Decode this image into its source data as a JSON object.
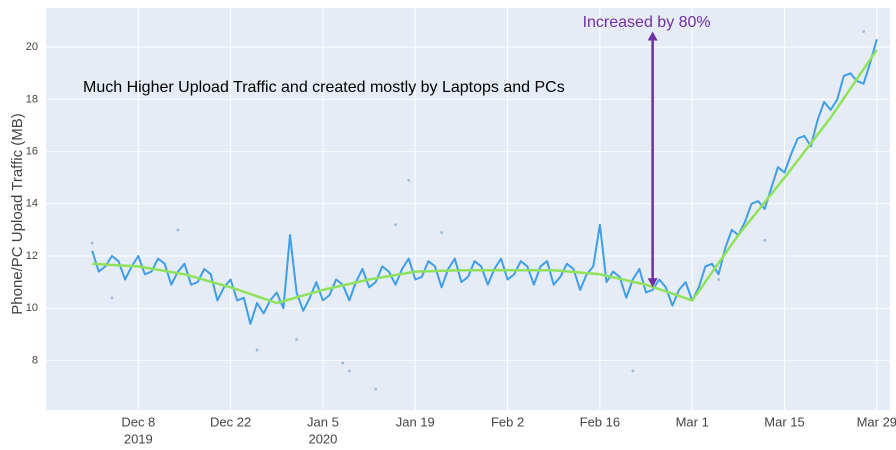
{
  "chart_data": {
    "type": "line",
    "ylabel": "Phone/PC Upload Traffic (MB)",
    "annotations": [
      {
        "text": "Increased by 80%",
        "color": "#7030a0",
        "arrow": {
          "x": "2020-02-24",
          "y_start": 10.8,
          "y_end": 20.6
        }
      },
      {
        "text": "Much Higher Upload Traffic and created mostly by Laptops and PCs",
        "color": "#000000"
      }
    ],
    "xlim": [
      "2019-11-24",
      "2020-03-31"
    ],
    "xticks": [
      {
        "value": "2019-12-08",
        "label": "Dec 8",
        "year": "2019"
      },
      {
        "value": "2019-12-22",
        "label": "Dec 22"
      },
      {
        "value": "2020-01-05",
        "label": "Jan 5",
        "year": "2020"
      },
      {
        "value": "2020-01-19",
        "label": "Jan 19"
      },
      {
        "value": "2020-02-02",
        "label": "Feb 2"
      },
      {
        "value": "2020-02-16",
        "label": "Feb 16"
      },
      {
        "value": "2020-03-01",
        "label": "Mar 1"
      },
      {
        "value": "2020-03-15",
        "label": "Mar 15"
      },
      {
        "value": "2020-03-29",
        "label": "Mar 29"
      }
    ],
    "ylim": [
      6.1,
      21.5
    ],
    "yticks": [
      8,
      10,
      12,
      14,
      16,
      18,
      20
    ],
    "grid": true,
    "series": [
      {
        "kind": "line",
        "color": "#3f9ee8",
        "x": [
          "2019-12-01",
          "2019-12-02",
          "2019-12-03",
          "2019-12-04",
          "2019-12-05",
          "2019-12-06",
          "2019-12-07",
          "2019-12-08",
          "2019-12-09",
          "2019-12-10",
          "2019-12-11",
          "2019-12-12",
          "2019-12-13",
          "2019-12-14",
          "2019-12-15",
          "2019-12-16",
          "2019-12-17",
          "2019-12-18",
          "2019-12-19",
          "2019-12-20",
          "2019-12-21",
          "2019-12-22",
          "2019-12-23",
          "2019-12-24",
          "2019-12-25",
          "2019-12-26",
          "2019-12-27",
          "2019-12-28",
          "2019-12-29",
          "2019-12-30",
          "2019-12-31",
          "2020-01-01",
          "2020-01-02",
          "2020-01-03",
          "2020-01-04",
          "2020-01-05",
          "2020-01-06",
          "2020-01-07",
          "2020-01-08",
          "2020-01-09",
          "2020-01-10",
          "2020-01-11",
          "2020-01-12",
          "2020-01-13",
          "2020-01-14",
          "2020-01-15",
          "2020-01-16",
          "2020-01-17",
          "2020-01-18",
          "2020-01-19",
          "2020-01-20",
          "2020-01-21",
          "2020-01-22",
          "2020-01-23",
          "2020-01-24",
          "2020-01-25",
          "2020-01-26",
          "2020-01-27",
          "2020-01-28",
          "2020-01-29",
          "2020-01-30",
          "2020-01-31",
          "2020-02-01",
          "2020-02-02",
          "2020-02-03",
          "2020-02-04",
          "2020-02-05",
          "2020-02-06",
          "2020-02-07",
          "2020-02-08",
          "2020-02-09",
          "2020-02-10",
          "2020-02-11",
          "2020-02-12",
          "2020-02-13",
          "2020-02-14",
          "2020-02-15",
          "2020-02-16",
          "2020-02-17",
          "2020-02-18",
          "2020-02-19",
          "2020-02-20",
          "2020-02-21",
          "2020-02-22",
          "2020-02-23",
          "2020-02-24",
          "2020-02-25",
          "2020-02-26",
          "2020-02-27",
          "2020-02-28",
          "2020-02-29",
          "2020-03-01",
          "2020-03-02",
          "2020-03-03",
          "2020-03-04",
          "2020-03-05",
          "2020-03-06",
          "2020-03-07",
          "2020-03-08",
          "2020-03-09",
          "2020-03-10",
          "2020-03-11",
          "2020-03-12",
          "2020-03-13",
          "2020-03-14",
          "2020-03-15",
          "2020-03-16",
          "2020-03-17",
          "2020-03-18",
          "2020-03-19",
          "2020-03-20",
          "2020-03-21",
          "2020-03-22",
          "2020-03-23",
          "2020-03-24",
          "2020-03-25",
          "2020-03-26",
          "2020-03-27",
          "2020-03-28",
          "2020-03-29"
        ],
        "values": [
          12.2,
          11.4,
          11.6,
          12.0,
          11.8,
          11.1,
          11.6,
          12.0,
          11.3,
          11.4,
          11.9,
          11.7,
          10.9,
          11.4,
          11.7,
          10.9,
          11.0,
          11.5,
          11.3,
          10.3,
          10.8,
          11.1,
          10.3,
          10.4,
          9.4,
          10.2,
          9.8,
          10.3,
          10.6,
          10.0,
          12.8,
          10.6,
          9.9,
          10.4,
          11.0,
          10.3,
          10.5,
          11.1,
          10.9,
          10.3,
          11.0,
          11.5,
          10.8,
          11.0,
          11.6,
          11.4,
          10.9,
          11.5,
          11.9,
          11.1,
          11.2,
          11.8,
          11.6,
          10.8,
          11.5,
          11.9,
          11.0,
          11.2,
          11.8,
          11.6,
          10.9,
          11.5,
          11.9,
          11.1,
          11.3,
          11.8,
          11.6,
          10.9,
          11.6,
          11.8,
          10.9,
          11.2,
          11.7,
          11.5,
          10.7,
          11.3,
          11.6,
          13.2,
          11.0,
          11.4,
          11.2,
          10.4,
          11.1,
          11.5,
          10.6,
          10.7,
          11.1,
          10.8,
          10.1,
          10.7,
          11.0,
          10.3,
          10.8,
          11.6,
          11.7,
          11.3,
          12.3,
          13.0,
          12.8,
          13.3,
          14.0,
          14.1,
          13.8,
          14.6,
          15.4,
          15.2,
          15.9,
          16.5,
          16.6,
          16.2,
          17.2,
          17.9,
          17.6,
          18.0,
          18.9,
          19.0,
          18.7,
          18.6,
          19.4,
          20.3
        ]
      },
      {
        "kind": "line",
        "color": "#8fe25a",
        "x": [
          "2019-12-01",
          "2019-12-08",
          "2019-12-15",
          "2019-12-22",
          "2019-12-29",
          "2020-01-05",
          "2020-01-12",
          "2020-01-19",
          "2020-01-26",
          "2020-02-02",
          "2020-02-09",
          "2020-02-16",
          "2020-02-23",
          "2020-03-01",
          "2020-03-08",
          "2020-03-15",
          "2020-03-22",
          "2020-03-29"
        ],
        "values": [
          11.7,
          11.6,
          11.3,
          10.8,
          10.2,
          10.7,
          11.1,
          11.4,
          11.45,
          11.45,
          11.45,
          11.3,
          10.9,
          10.3,
          12.8,
          15.0,
          17.3,
          19.9
        ]
      },
      {
        "kind": "scatter",
        "color": "#9fb8d8",
        "x": [
          "2019-12-01",
          "2019-12-04",
          "2019-12-14",
          "2019-12-26",
          "2020-01-01",
          "2020-01-08",
          "2020-01-09",
          "2020-01-13",
          "2020-01-16",
          "2020-01-18",
          "2020-01-23",
          "2020-02-21",
          "2020-03-05",
          "2020-03-12",
          "2020-03-27"
        ],
        "values": [
          12.5,
          10.4,
          13.0,
          8.4,
          8.8,
          7.9,
          7.6,
          6.9,
          13.2,
          14.9,
          12.9,
          7.6,
          11.1,
          12.6,
          20.6
        ]
      }
    ]
  }
}
